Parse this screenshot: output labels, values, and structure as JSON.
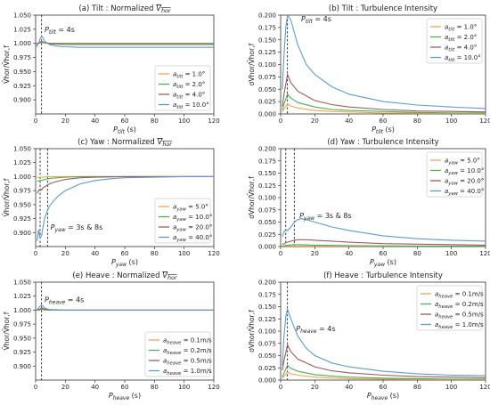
{
  "colors": {
    "orange": "#f5a54a",
    "green": "#4caf50",
    "brown": "#a05a5a",
    "blue": "#5b9bd5"
  },
  "chart_data": [
    {
      "id": "a",
      "type": "line",
      "title_prefix": "(a) Tilt : Normalized ",
      "ylabel": "V̄hor/V̄hor,f",
      "xlabel_sym": "P",
      "xlabel_sub": "tilt",
      "xlabel_unit": " (s)",
      "xlim": [
        0,
        120
      ],
      "ylim": [
        0.875,
        1.05
      ],
      "xticks": [
        "0",
        "20",
        "40",
        "60",
        "80",
        "100",
        "120"
      ],
      "yticks": [
        "0.900",
        "0.925",
        "0.950",
        "0.975",
        "1.000",
        "1.025",
        "1.050"
      ],
      "vlines": [
        4
      ],
      "annotation": {
        "sym": "P",
        "sub": "tilt",
        "text": " = 4s",
        "x": 6,
        "y": 1.02
      },
      "legend": {
        "position": "lower-right",
        "sym": "a",
        "sub": "tilt",
        "labels": [
          " = 1.0°",
          " = 2.0°",
          " = 4.0°",
          " = 10.0°"
        ]
      },
      "series": [
        {
          "key": "1.0",
          "color": "orange",
          "x": [
            0,
            2,
            4,
            6,
            10,
            20,
            40,
            60,
            80,
            100,
            120
          ],
          "y": [
            0.999,
            1.0,
            1.001,
            1.001,
            1.0,
            1.0,
            1.0,
            1.0,
            1.0,
            1.0,
            1.0
          ]
        },
        {
          "key": "2.0",
          "color": "green",
          "x": [
            0,
            2,
            4,
            6,
            10,
            20,
            40,
            60,
            80,
            100,
            120
          ],
          "y": [
            0.999,
            1.0,
            1.002,
            1.001,
            1.0,
            1.0,
            1.0,
            1.0,
            1.0,
            1.0,
            1.0
          ]
        },
        {
          "key": "4.0",
          "color": "brown",
          "x": [
            0,
            2,
            4,
            6,
            10,
            20,
            40,
            60,
            80,
            100,
            120
          ],
          "y": [
            0.998,
            1.0,
            1.004,
            1.001,
            0.999,
            0.998,
            0.998,
            0.998,
            0.998,
            0.998,
            0.998
          ]
        },
        {
          "key": "10.0",
          "color": "blue",
          "x": [
            0,
            1,
            2,
            3,
            4,
            5,
            6,
            8,
            10,
            15,
            20,
            30,
            40,
            60,
            80,
            100,
            120
          ],
          "y": [
            0.993,
            0.996,
            1.0,
            1.008,
            1.013,
            1.01,
            1.004,
            1.0,
            0.997,
            0.995,
            0.994,
            0.993,
            0.993,
            0.993,
            0.993,
            0.993,
            0.993
          ]
        }
      ]
    },
    {
      "id": "b",
      "type": "line",
      "title": "(b) Tilt : Turbulence Intensity",
      "ylabel": "σVhor/V̄hor,f",
      "xlabel_sym": "P",
      "xlabel_sub": "tilt",
      "xlabel_unit": " (s)",
      "xlim": [
        0,
        120
      ],
      "ylim": [
        0,
        0.2
      ],
      "xticks": [
        "0",
        "20",
        "40",
        "60",
        "80",
        "100",
        "120"
      ],
      "yticks": [
        "0.000",
        "0.025",
        "0.050",
        "0.075",
        "0.100",
        "0.125",
        "0.150",
        "0.175",
        "0.200"
      ],
      "vlines": [
        4
      ],
      "annotation": {
        "sym": "P",
        "sub": "tilt",
        "text": " = 4s",
        "x": 12,
        "y": 0.187
      },
      "legend": {
        "position": "upper-right",
        "sym": "a",
        "sub": "tilt",
        "labels": [
          " = 1.0°",
          " = 2.0°",
          " = 4.0°",
          " = 10.0°"
        ]
      },
      "series": [
        {
          "key": "1.0",
          "color": "orange",
          "x": [
            1,
            2,
            4,
            6,
            10,
            20,
            30,
            40,
            60,
            80,
            100,
            120
          ],
          "y": [
            0.004,
            0.01,
            0.02,
            0.016,
            0.012,
            0.007,
            0.005,
            0.004,
            0.002,
            0.0015,
            0.001,
            0.001
          ]
        },
        {
          "key": "2.0",
          "color": "green",
          "x": [
            1,
            2,
            4,
            6,
            10,
            20,
            30,
            40,
            60,
            80,
            100,
            120
          ],
          "y": [
            0.008,
            0.02,
            0.04,
            0.032,
            0.023,
            0.014,
            0.009,
            0.007,
            0.005,
            0.003,
            0.002,
            0.002
          ]
        },
        {
          "key": "4.0",
          "color": "brown",
          "x": [
            1,
            2,
            4,
            6,
            10,
            20,
            30,
            40,
            60,
            80,
            100,
            120
          ],
          "y": [
            0.015,
            0.04,
            0.08,
            0.063,
            0.046,
            0.027,
            0.019,
            0.014,
            0.009,
            0.006,
            0.005,
            0.004
          ]
        },
        {
          "key": "10.0",
          "color": "blue",
          "x": [
            1,
            2,
            3,
            4,
            6,
            10,
            15,
            20,
            30,
            40,
            60,
            80,
            100,
            120
          ],
          "y": [
            0.05,
            0.12,
            0.175,
            0.2,
            0.19,
            0.14,
            0.1,
            0.08,
            0.055,
            0.04,
            0.025,
            0.018,
            0.014,
            0.011
          ]
        }
      ]
    },
    {
      "id": "c",
      "type": "line",
      "title_prefix": "(c) Yaw : Normalized ",
      "ylabel": "V̄hor/V̄hor,f",
      "xlabel_sym": "P",
      "xlabel_sub": "yaw",
      "xlabel_unit": " (s)",
      "xlim": [
        0,
        120
      ],
      "ylim": [
        0.875,
        1.05
      ],
      "xticks": [
        "0",
        "20",
        "40",
        "60",
        "80",
        "100",
        "120"
      ],
      "yticks": [
        "0.900",
        "0.925",
        "0.950",
        "0.975",
        "1.000",
        "1.025",
        "1.050"
      ],
      "vlines": [
        3,
        8
      ],
      "annotation": {
        "sym": "P",
        "sub": "yaw",
        "text": " = 3s & 8s",
        "x": 10,
        "y": 0.905
      },
      "legend": {
        "position": "lower-right",
        "sym": "a",
        "sub": "yaw",
        "labels": [
          " = 5.0°",
          " = 10.0°",
          " = 20.0°",
          " = 40.0°"
        ]
      },
      "series": [
        {
          "key": "5.0",
          "color": "orange",
          "x": [
            1,
            3,
            5,
            8,
            10,
            15,
            20,
            30,
            40,
            60,
            80,
            100,
            120
          ],
          "y": [
            0.998,
            0.999,
            0.999,
            1.0,
            1.0,
            1.0,
            1.0,
            1.0,
            1.0,
            1.0,
            1.0,
            1.0,
            1.0
          ]
        },
        {
          "key": "10.0",
          "color": "green",
          "x": [
            1,
            3,
            5,
            8,
            10,
            15,
            20,
            30,
            40,
            60,
            80,
            100,
            120
          ],
          "y": [
            0.992,
            0.993,
            0.994,
            0.996,
            0.997,
            0.998,
            0.999,
            1.0,
            1.0,
            1.0,
            1.0,
            1.0,
            1.0
          ]
        },
        {
          "key": "20.0",
          "color": "brown",
          "x": [
            1,
            2,
            3,
            4,
            5,
            8,
            10,
            15,
            20,
            30,
            40,
            60,
            80,
            100,
            120
          ],
          "y": [
            0.97,
            0.975,
            0.978,
            0.976,
            0.98,
            0.985,
            0.988,
            0.992,
            0.995,
            0.998,
            0.999,
            1.0,
            1.0,
            1.0,
            1.0
          ]
        },
        {
          "key": "40.0",
          "color": "blue",
          "x": [
            1,
            2,
            3,
            4,
            5,
            6,
            8,
            10,
            15,
            20,
            30,
            40,
            50,
            60,
            80,
            100,
            120
          ],
          "y": [
            0.885,
            0.905,
            0.89,
            0.895,
            0.91,
            0.925,
            0.94,
            0.95,
            0.965,
            0.975,
            0.987,
            0.993,
            0.996,
            0.998,
            0.999,
            1.0,
            1.0
          ]
        }
      ]
    },
    {
      "id": "d",
      "type": "line",
      "title": "(d) Yaw : Turbulence Intensity",
      "ylabel": "σVhor/V̄hor,f",
      "xlabel_sym": "P",
      "xlabel_sub": "yaw",
      "xlabel_unit": " (s)",
      "xlim": [
        0,
        120
      ],
      "ylim": [
        0,
        0.2
      ],
      "xticks": [
        "0",
        "20",
        "40",
        "60",
        "80",
        "100",
        "120"
      ],
      "yticks": [
        "0.000",
        "0.025",
        "0.050",
        "0.075",
        "0.100",
        "0.125",
        "0.150",
        "0.175",
        "0.200"
      ],
      "vlines": [
        3,
        8
      ],
      "annotation": {
        "sym": "P",
        "sub": "yaw",
        "text": " = 3s & 8s",
        "x": 11,
        "y": 0.058
      },
      "legend": {
        "position": "upper-right",
        "sym": "a",
        "sub": "yaw",
        "labels": [
          " = 5.0°",
          " = 10.0°",
          " = 20.0°",
          " = 40.0°"
        ]
      },
      "series": [
        {
          "key": "5.0",
          "color": "orange",
          "x": [
            1,
            3,
            5,
            8,
            10,
            20,
            40,
            60,
            80,
            100,
            120
          ],
          "y": [
            0.0,
            0.001,
            0.001,
            0.001,
            0.001,
            0.001,
            0.0005,
            0.0003,
            0.0002,
            0.0002,
            0.0001
          ]
        },
        {
          "key": "10.0",
          "color": "green",
          "x": [
            1,
            3,
            5,
            8,
            10,
            20,
            40,
            60,
            80,
            100,
            120
          ],
          "y": [
            0.001,
            0.002,
            0.003,
            0.004,
            0.004,
            0.003,
            0.002,
            0.0015,
            0.001,
            0.001,
            0.0008
          ]
        },
        {
          "key": "20.0",
          "color": "brown",
          "x": [
            1,
            3,
            5,
            8,
            10,
            15,
            20,
            30,
            40,
            60,
            80,
            100,
            120
          ],
          "y": [
            0.004,
            0.008,
            0.01,
            0.013,
            0.014,
            0.014,
            0.013,
            0.011,
            0.009,
            0.006,
            0.005,
            0.004,
            0.003
          ]
        },
        {
          "key": "40.0",
          "color": "blue",
          "x": [
            1,
            2,
            3,
            4,
            6,
            8,
            10,
            12,
            15,
            20,
            30,
            40,
            60,
            80,
            100,
            120
          ],
          "y": [
            0.02,
            0.03,
            0.035,
            0.032,
            0.04,
            0.05,
            0.055,
            0.057,
            0.055,
            0.05,
            0.04,
            0.033,
            0.022,
            0.016,
            0.013,
            0.011
          ]
        }
      ]
    },
    {
      "id": "e",
      "type": "line",
      "title_prefix": "(e) Heave : Normalized ",
      "ylabel": "V̄hor/V̄hor,f",
      "xlabel_sym": "P",
      "xlabel_sub": "heave",
      "xlabel_unit": " (s)",
      "xlim": [
        0,
        120
      ],
      "ylim": [
        0.875,
        1.05
      ],
      "xticks": [
        "0",
        "20",
        "40",
        "60",
        "80",
        "100",
        "120"
      ],
      "yticks": [
        "0.900",
        "0.925",
        "0.950",
        "0.975",
        "1.000",
        "1.025",
        "1.050"
      ],
      "vlines": [
        4
      ],
      "annotation": {
        "sym": "P",
        "sub": "heave",
        "text": " = 4s",
        "x": 6,
        "y": 1.014
      },
      "legend": {
        "position": "lower-right",
        "sym": "a",
        "sub": "heave",
        "labels": [
          " = 0.1m/s",
          " = 0.2m/s",
          " = 0.5m/s",
          " = 1.0m/s"
        ]
      },
      "series": [
        {
          "key": "0.1",
          "color": "orange",
          "x": [
            0,
            2,
            4,
            6,
            10,
            20,
            40,
            60,
            80,
            100,
            120
          ],
          "y": [
            1.0,
            1.0,
            1.001,
            1.0,
            1.0,
            1.0,
            1.0,
            1.0,
            1.0,
            1.0,
            1.0
          ]
        },
        {
          "key": "0.2",
          "color": "green",
          "x": [
            0,
            2,
            4,
            6,
            10,
            20,
            40,
            60,
            80,
            100,
            120
          ],
          "y": [
            1.0,
            1.0,
            1.002,
            1.001,
            1.0,
            1.0,
            1.0,
            1.0,
            1.0,
            1.0,
            1.0
          ]
        },
        {
          "key": "0.5",
          "color": "brown",
          "x": [
            0,
            2,
            4,
            6,
            10,
            20,
            40,
            60,
            80,
            100,
            120
          ],
          "y": [
            1.0,
            1.001,
            1.004,
            1.002,
            1.001,
            1.0,
            1.0,
            1.0,
            1.0,
            1.0,
            1.0
          ]
        },
        {
          "key": "1.0",
          "color": "blue",
          "x": [
            0,
            1,
            2,
            3,
            4,
            5,
            6,
            8,
            10,
            15,
            20,
            40,
            60,
            80,
            100,
            120
          ],
          "y": [
            1.0,
            1.001,
            1.004,
            1.007,
            1.009,
            1.007,
            1.004,
            1.002,
            1.001,
            1.0,
            1.0,
            1.0,
            1.0,
            1.0,
            1.0,
            1.0
          ]
        }
      ]
    },
    {
      "id": "f",
      "type": "line",
      "title": "(f) Heave : Turbulence Intensity",
      "ylabel": "σVhor/V̄hor,f",
      "xlabel_sym": "P",
      "xlabel_sub": "heave",
      "xlabel_unit": " (s)",
      "xlim": [
        0,
        120
      ],
      "ylim": [
        0,
        0.2
      ],
      "xticks": [
        "0",
        "20",
        "40",
        "60",
        "80",
        "100",
        "120"
      ],
      "yticks": [
        "0.000",
        "0.025",
        "0.050",
        "0.075",
        "0.100",
        "0.125",
        "0.150",
        "0.175",
        "0.200"
      ],
      "vlines": [
        4
      ],
      "annotation": {
        "sym": "P",
        "sub": "heave",
        "text": " = 4s",
        "x": 9,
        "y": 0.1
      },
      "legend": {
        "position": "upper-right",
        "sym": "a",
        "sub": "heave",
        "labels": [
          " = 0.1m/s",
          " = 0.2m/s",
          " = 0.5m/s",
          " = 1.0m/s"
        ]
      },
      "series": [
        {
          "key": "0.1",
          "color": "orange",
          "x": [
            1,
            2,
            4,
            6,
            10,
            20,
            30,
            40,
            60,
            80,
            100,
            120
          ],
          "y": [
            0.003,
            0.008,
            0.016,
            0.013,
            0.01,
            0.006,
            0.004,
            0.003,
            0.002,
            0.0015,
            0.001,
            0.001
          ]
        },
        {
          "key": "0.2",
          "color": "green",
          "x": [
            1,
            2,
            4,
            6,
            10,
            20,
            30,
            40,
            60,
            80,
            100,
            120
          ],
          "y": [
            0.006,
            0.015,
            0.03,
            0.024,
            0.018,
            0.011,
            0.008,
            0.006,
            0.004,
            0.003,
            0.002,
            0.002
          ]
        },
        {
          "key": "0.5",
          "color": "brown",
          "x": [
            1,
            2,
            4,
            6,
            10,
            20,
            30,
            40,
            60,
            80,
            100,
            120
          ],
          "y": [
            0.02,
            0.04,
            0.072,
            0.058,
            0.043,
            0.027,
            0.019,
            0.015,
            0.01,
            0.007,
            0.006,
            0.005
          ]
        },
        {
          "key": "1.0",
          "color": "blue",
          "x": [
            1,
            2,
            3,
            4,
            6,
            10,
            15,
            20,
            30,
            40,
            60,
            80,
            100,
            120
          ],
          "y": [
            0.03,
            0.09,
            0.13,
            0.145,
            0.125,
            0.09,
            0.065,
            0.05,
            0.035,
            0.027,
            0.018,
            0.013,
            0.01,
            0.009
          ]
        }
      ]
    }
  ]
}
